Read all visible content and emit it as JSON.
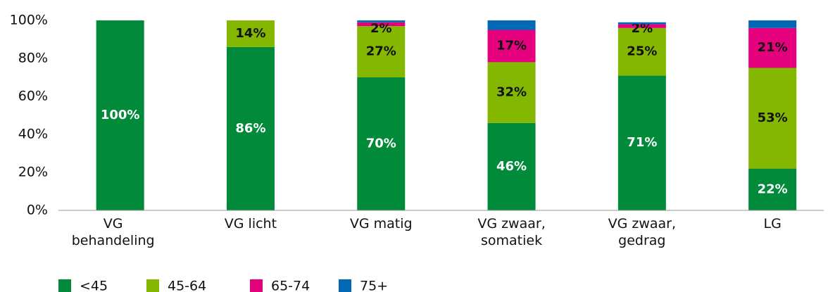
{
  "chart_data": {
    "type": "stacked_bar",
    "categories": [
      "VG behandeling",
      "VG licht",
      "VG matig",
      "VG zwaar, somatiek",
      "VG zwaar, gedrag",
      "LG"
    ],
    "series": [
      {
        "name": "<45",
        "color": "#008a3a",
        "values": [
          100,
          86,
          70,
          46,
          71,
          22
        ],
        "value_labels": [
          "100%",
          "86%",
          "70%",
          "46%",
          "71%",
          "22%"
        ]
      },
      {
        "name": "45-64",
        "color": "#84b800",
        "values": [
          0,
          14,
          27,
          32,
          25,
          53
        ],
        "value_labels": [
          null,
          "14%",
          "27%",
          "32%",
          "25%",
          "53%"
        ]
      },
      {
        "name": "65-74",
        "color": "#e5007d",
        "values": [
          0,
          0,
          2,
          17,
          2,
          21
        ],
        "value_labels": [
          null,
          null,
          "2%",
          "17%",
          "2%",
          "21%"
        ]
      },
      {
        "name": "75+",
        "color": "#0068b4",
        "values": [
          0,
          0,
          1,
          5,
          1,
          4
        ],
        "value_labels": [
          null,
          null,
          null,
          null,
          null,
          null
        ]
      }
    ],
    "ylim": [
      0,
      100
    ],
    "yticks": [
      {
        "value": 0,
        "label": "0%"
      },
      {
        "value": 20,
        "label": "20%"
      },
      {
        "value": 40,
        "label": "40%"
      },
      {
        "value": 60,
        "label": "60%"
      },
      {
        "value": 80,
        "label": "80%"
      },
      {
        "value": 100,
        "label": "100%"
      }
    ],
    "grid": false
  }
}
